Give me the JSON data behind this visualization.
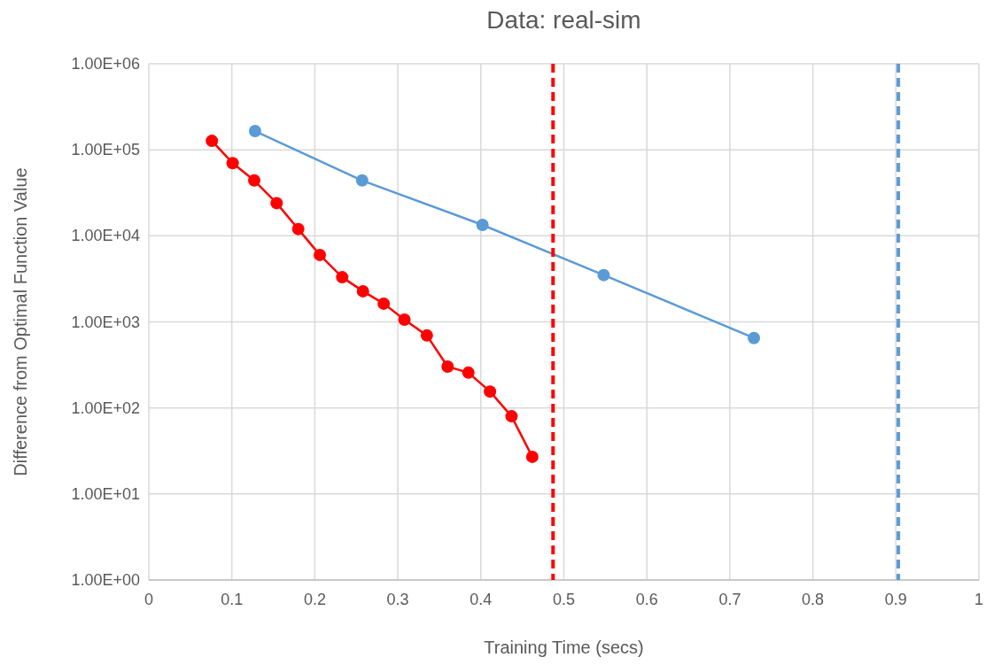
{
  "chart_data": {
    "type": "line",
    "title": "Data: real-sim",
    "xlabel": "Training Time (secs)",
    "ylabel": "Difference from Optimal Function Value",
    "log": "y",
    "grid": true,
    "marker": "circle",
    "line_style": "solid",
    "xlim": [
      0,
      1
    ],
    "xticks": [
      0,
      0.1,
      0.2,
      0.3,
      0.4,
      0.5,
      0.6,
      0.7,
      0.8,
      0.9,
      1
    ],
    "ylim": [
      1,
      1000000
    ],
    "yticks": [
      {
        "value": 1,
        "label": "1.00E+00"
      },
      {
        "value": 10,
        "label": "1.00E+01"
      },
      {
        "value": 100,
        "label": "1.00E+02"
      },
      {
        "value": 1000,
        "label": "1.00E+03"
      },
      {
        "value": 10000,
        "label": "1.00E+04"
      },
      {
        "value": 100000,
        "label": "1.00E+05"
      },
      {
        "value": 1000000,
        "label": "1.00E+06"
      }
    ],
    "series": [
      {
        "color": "#ff0000",
        "x": [
          0.076,
          0.101,
          0.127,
          0.154,
          0.18,
          0.206,
          0.233,
          0.258,
          0.283,
          0.308,
          0.335,
          0.36,
          0.385,
          0.411,
          0.437,
          0.462
        ],
        "values": [
          127000,
          70000,
          44000,
          24000,
          12000,
          6000,
          3300,
          2270,
          1630,
          1060,
          695,
          302,
          257,
          155,
          80,
          27
        ]
      },
      {
        "color": "#5b9bd5",
        "x": [
          0.128,
          0.257,
          0.402,
          0.548,
          0.729
        ],
        "values": [
          165000,
          44000,
          13400,
          3500,
          650
        ]
      }
    ],
    "ref_lines": [
      {
        "axis": "x",
        "value": 0.487,
        "color": "#ff0000",
        "line_style": "dashed"
      },
      {
        "axis": "x",
        "value": 0.903,
        "color": "#5b9bd5",
        "line_style": "dashed"
      }
    ]
  }
}
